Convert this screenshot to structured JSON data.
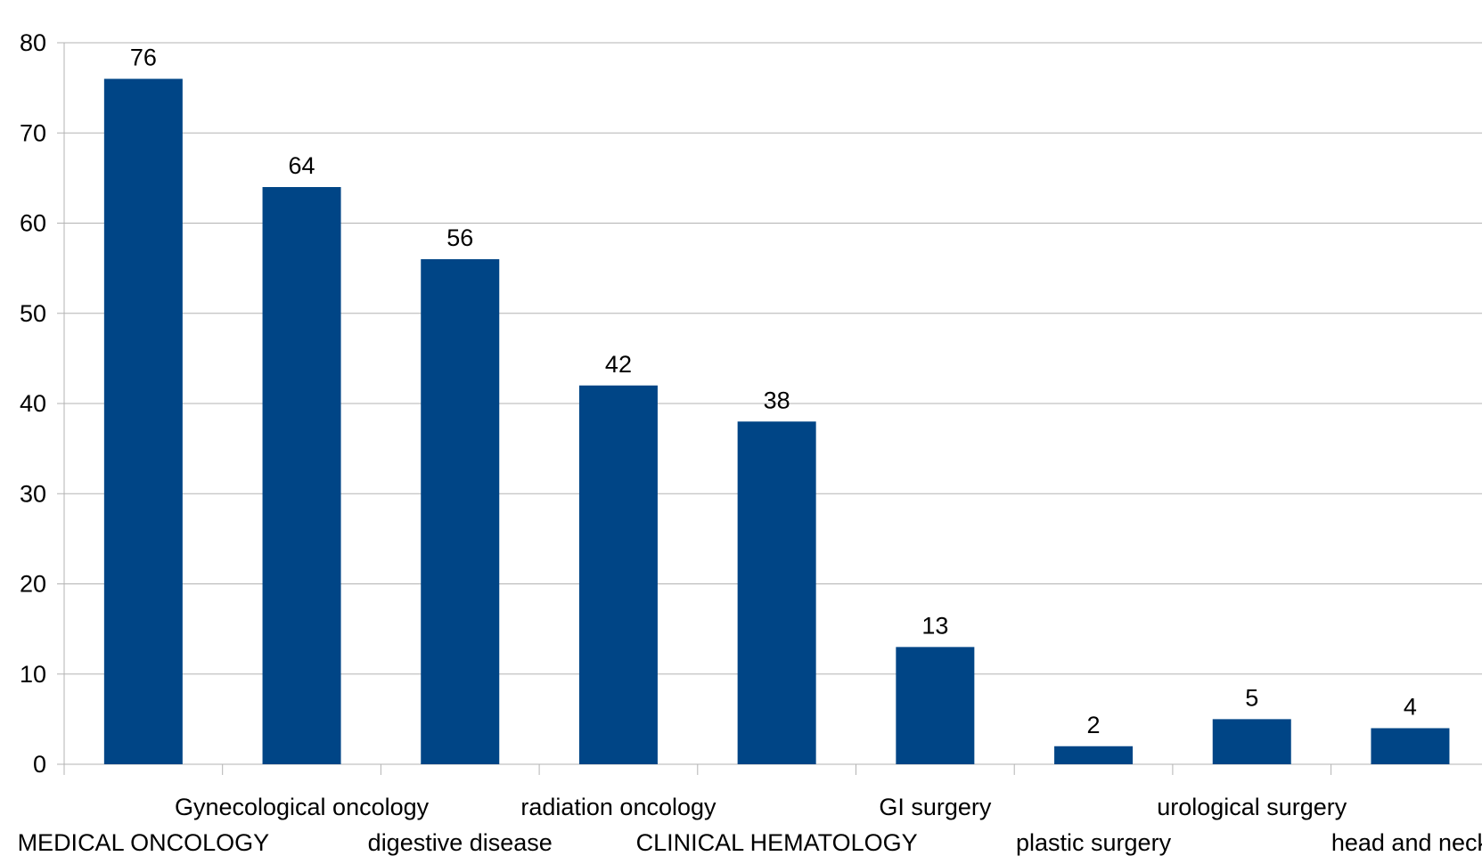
{
  "chart_data": {
    "type": "bar",
    "title": "",
    "xlabel": "",
    "ylabel": "",
    "categories": [
      "MEDICAL ONCOLOGY",
      "Gynecological oncology",
      "digestive disease",
      "radiation oncology",
      "CLINICAL HEMATOLOGY",
      "GI surgery",
      "plastic surgery",
      "urological surgery",
      "head and neck"
    ],
    "values": [
      76,
      64,
      56,
      42,
      38,
      13,
      2,
      5,
      4
    ],
    "ylim": [
      0,
      80
    ],
    "yticks": [
      0,
      10,
      20,
      30,
      40,
      50,
      60,
      70,
      80
    ],
    "grid": true,
    "legend": "none",
    "bar_color": "#004586",
    "data_labels": true
  }
}
